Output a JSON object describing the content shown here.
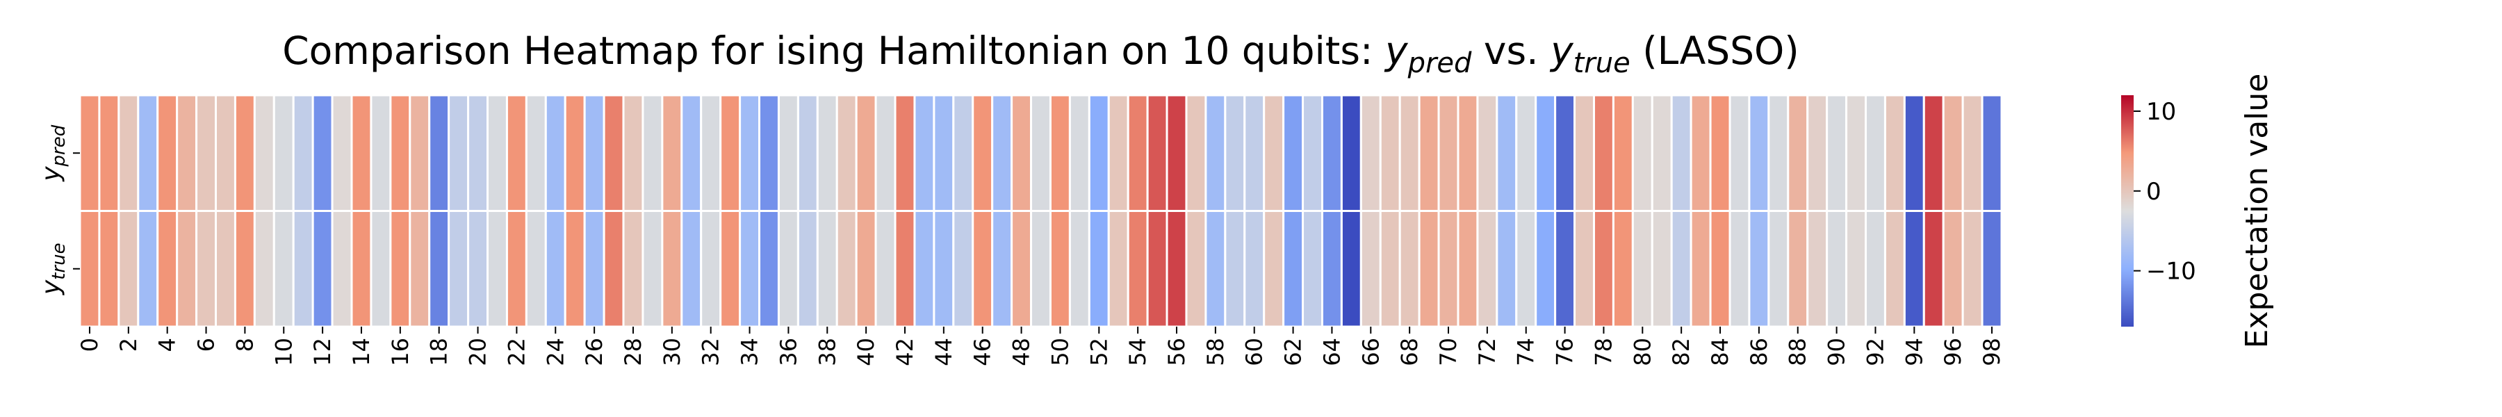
{
  "chart_data": {
    "type": "heatmap",
    "title": {
      "prefix": "Comparison Heatmap for ising Hamiltonian on 10 qubits: ",
      "y1": "y",
      "y1_sub": "pred",
      "mid": " vs. ",
      "y2": "y",
      "y2_sub": "true",
      "suffix": " (LASSO)"
    },
    "rows": [
      {
        "label": "y",
        "label_sub": "pred"
      },
      {
        "label": "y",
        "label_sub": "true"
      }
    ],
    "x_tick_labels": [
      "0",
      "2",
      "4",
      "6",
      "8",
      "10",
      "12",
      "14",
      "16",
      "18",
      "20",
      "22",
      "24",
      "26",
      "28",
      "30",
      "32",
      "34",
      "36",
      "38",
      "40",
      "42",
      "44",
      "46",
      "48",
      "50",
      "52",
      "54",
      "56",
      "58",
      "60",
      "62",
      "64",
      "66",
      "68",
      "70",
      "72",
      "74",
      "76",
      "78",
      "80",
      "82",
      "84",
      "86",
      "88",
      "90",
      "92",
      "94",
      "96",
      "98"
    ],
    "values_pred": [
      5,
      5,
      0,
      -8,
      5,
      2,
      0,
      0,
      5,
      -2,
      -3,
      -5,
      -12,
      -2,
      5,
      -3,
      5,
      2,
      -13,
      -5,
      -5,
      -3,
      5,
      -3,
      -8,
      5,
      -8,
      6,
      0,
      -3,
      3,
      -8,
      -3,
      5,
      -8,
      -12,
      -3,
      -5,
      -3,
      0,
      3,
      -3,
      6,
      -8,
      -8,
      -5,
      5,
      -8,
      3,
      -3,
      5,
      -3,
      -10,
      0,
      6,
      8,
      9,
      0,
      -8,
      -5,
      -5,
      0,
      -11,
      -5,
      -12,
      -17,
      -1,
      0,
      0,
      3,
      2,
      3,
      -1,
      -8,
      -3,
      -10,
      -15,
      0,
      6,
      5,
      -2,
      -2,
      -5,
      3,
      5,
      -3,
      -8,
      -3,
      2,
      -1,
      -3,
      -2,
      -3,
      0,
      -16,
      9,
      2,
      0,
      -14
    ],
    "values_true": [
      5,
      5,
      0,
      -8,
      5,
      2,
      0,
      0,
      5,
      -2,
      -3,
      -5,
      -12,
      -2,
      5,
      -3,
      5,
      2,
      -13,
      -5,
      -5,
      -3,
      5,
      -3,
      -8,
      5,
      -8,
      6,
      0,
      -3,
      3,
      -8,
      -3,
      5,
      -8,
      -12,
      -3,
      -5,
      -3,
      0,
      3,
      -3,
      6,
      -8,
      -8,
      -5,
      5,
      -8,
      3,
      -3,
      5,
      -3,
      -10,
      0,
      6,
      8,
      9,
      0,
      -8,
      -5,
      -5,
      0,
      -11,
      -5,
      -12,
      -17,
      -1,
      0,
      0,
      3,
      2,
      3,
      -1,
      -8,
      -3,
      -10,
      -15,
      0,
      6,
      5,
      -2,
      -2,
      -5,
      3,
      5,
      -3,
      -8,
      -3,
      2,
      -1,
      -3,
      -2,
      -3,
      0,
      -16,
      9,
      2,
      0,
      -14
    ],
    "colormap": "coolwarm",
    "vmin": -17,
    "vmax": 12,
    "colorbar": {
      "label": "Expectation value",
      "ticks": [
        10,
        0,
        -10
      ],
      "tick_labels": [
        "10",
        "0",
        "−10"
      ]
    },
    "colors": {
      "low": "#3b4cc0",
      "mid": "#dddddd",
      "high": "#b40426"
    }
  }
}
